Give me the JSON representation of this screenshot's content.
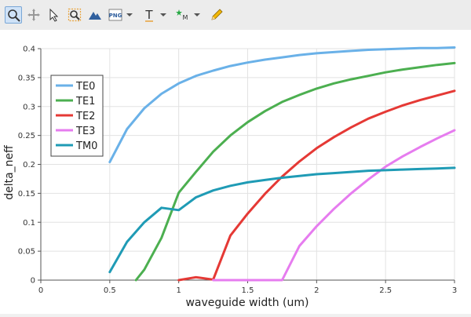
{
  "toolbar": {
    "items": [
      {
        "name": "zoom-icon",
        "active": true
      },
      {
        "name": "pan-icon",
        "active": false
      },
      {
        "name": "select-arrow-icon",
        "active": false
      },
      {
        "name": "zoom-fit-icon",
        "active": false
      },
      {
        "name": "mountain-icon",
        "active": false
      },
      {
        "name": "png-export-icon",
        "active": false,
        "label": "PNG",
        "dropdown": true
      },
      {
        "name": "text-tool-icon",
        "active": false,
        "label": "T",
        "dropdown": true
      },
      {
        "name": "marker-tool-icon",
        "active": false,
        "label": "M",
        "dropdown": true
      },
      {
        "name": "pencil-icon",
        "active": false
      }
    ],
    "accent": "#3a7bd5"
  },
  "chart_data": {
    "type": "line",
    "title": "",
    "xlabel": "waveguide width (um)",
    "ylabel": "delta_neff",
    "xlim": [
      0,
      3
    ],
    "ylim": [
      0,
      0.4
    ],
    "xticks": [
      "0",
      "0.5",
      "1",
      "1.5",
      "2",
      "2.5",
      "3"
    ],
    "yticks": [
      "0",
      "0.05",
      "0.1",
      "0.15",
      "0.2",
      "0.25",
      "0.3",
      "0.35",
      "0.4"
    ],
    "grid": true,
    "legend_position": "top-left",
    "series": [
      {
        "name": "TE0",
        "color": "#6ab1e8",
        "x": [
          0.5,
          0.625,
          0.75,
          0.875,
          1.0,
          1.125,
          1.25,
          1.375,
          1.5,
          1.625,
          1.75,
          1.875,
          2.0,
          2.125,
          2.25,
          2.375,
          2.5,
          2.625,
          2.75,
          2.875,
          3.0
        ],
        "y": [
          0.204,
          0.261,
          0.297,
          0.322,
          0.34,
          0.353,
          0.362,
          0.37,
          0.376,
          0.381,
          0.385,
          0.389,
          0.392,
          0.394,
          0.396,
          0.398,
          0.399,
          0.4,
          0.401,
          0.401,
          0.402
        ]
      },
      {
        "name": "TE1",
        "color": "#4caf50",
        "x": [
          0.69,
          0.75,
          0.875,
          1.0,
          1.125,
          1.25,
          1.375,
          1.5,
          1.625,
          1.75,
          1.875,
          2.0,
          2.125,
          2.25,
          2.375,
          2.5,
          2.625,
          2.75,
          2.875,
          3.0
        ],
        "y": [
          0.0,
          0.018,
          0.073,
          0.151,
          0.187,
          0.222,
          0.25,
          0.273,
          0.292,
          0.308,
          0.32,
          0.331,
          0.34,
          0.347,
          0.353,
          0.359,
          0.364,
          0.368,
          0.372,
          0.375
        ]
      },
      {
        "name": "TE2",
        "color": "#e53935",
        "x": [
          1.0,
          1.125,
          1.25,
          1.375,
          1.5,
          1.625,
          1.75,
          1.875,
          2.0,
          2.125,
          2.25,
          2.375,
          2.5,
          2.625,
          2.75,
          2.875,
          3.0
        ],
        "y": [
          0.0,
          0.005,
          0.001,
          0.077,
          0.115,
          0.149,
          0.179,
          0.205,
          0.228,
          0.247,
          0.264,
          0.279,
          0.291,
          0.302,
          0.311,
          0.319,
          0.327
        ]
      },
      {
        "name": "TE3",
        "color": "#e67cef",
        "x": [
          1.25,
          1.5,
          1.75,
          1.875,
          2.0,
          2.125,
          2.25,
          2.375,
          2.5,
          2.625,
          2.75,
          2.875,
          3.0
        ],
        "y": [
          0.0,
          0.0,
          0.0,
          0.059,
          0.093,
          0.123,
          0.15,
          0.174,
          0.196,
          0.214,
          0.23,
          0.245,
          0.259
        ]
      },
      {
        "name": "TM0",
        "color": "#1f9bb5",
        "x": [
          0.5,
          0.625,
          0.75,
          0.875,
          1.0,
          1.125,
          1.25,
          1.375,
          1.5,
          1.625,
          1.75,
          1.875,
          2.0,
          2.125,
          2.25,
          2.375,
          2.5,
          2.625,
          2.75,
          2.875,
          3.0
        ],
        "y": [
          0.014,
          0.066,
          0.1,
          0.125,
          0.121,
          0.143,
          0.155,
          0.163,
          0.169,
          0.173,
          0.177,
          0.18,
          0.183,
          0.185,
          0.187,
          0.189,
          0.19,
          0.191,
          0.192,
          0.193,
          0.194
        ]
      }
    ]
  }
}
